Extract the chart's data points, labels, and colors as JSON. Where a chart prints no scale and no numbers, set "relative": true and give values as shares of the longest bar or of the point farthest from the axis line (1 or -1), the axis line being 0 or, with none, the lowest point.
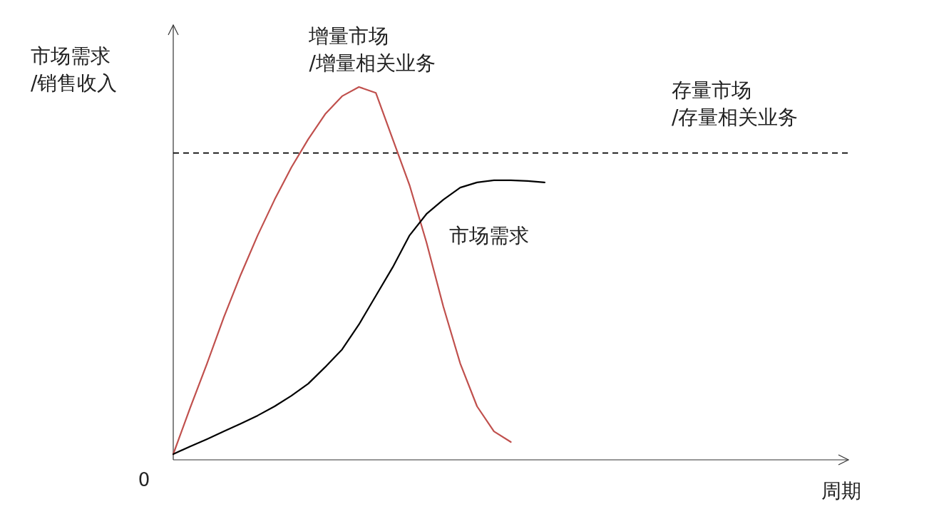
{
  "chart_data": {
    "type": "line",
    "relative": true,
    "xlabel": "周期",
    "ylabel": "市场需求\n/销售收入",
    "annotations": [
      "0"
    ],
    "categories": [
      null,
      null,
      null,
      null,
      null,
      null,
      null,
      null,
      null,
      null,
      null,
      null,
      null,
      null,
      null,
      null,
      null,
      null,
      null,
      null,
      null,
      null,
      null,
      null,
      null,
      null,
      null,
      null,
      null,
      null,
      null,
      null,
      null,
      null,
      null,
      null,
      null,
      null,
      null,
      null
    ],
    "series": [
      {
        "name": "增量市场\n/增量相关业务",
        "color": "#c0504d",
        "values": [
          0,
          0.126,
          0.247,
          0.373,
          0.489,
          0.596,
          0.693,
          0.781,
          0.858,
          0.926,
          0.975,
          1.0,
          0.984,
          0.858,
          0.732,
          0.577,
          0.402,
          0.247,
          0.13,
          0.062,
          0.033,
          null,
          null,
          null,
          null,
          null,
          null,
          null,
          null,
          null,
          null,
          null,
          null,
          null,
          null,
          null,
          null,
          null,
          null,
          null
        ]
      },
      {
        "name": "市场需求",
        "color": "#000000",
        "values": [
          0,
          0.021,
          0.041,
          0.062,
          0.083,
          0.105,
          0.13,
          0.159,
          0.192,
          0.237,
          0.285,
          0.353,
          0.431,
          0.509,
          0.596,
          0.654,
          0.693,
          0.726,
          0.74,
          0.746,
          0.746,
          0.744,
          0.74,
          null,
          null,
          null,
          null,
          null,
          null,
          null,
          null,
          null,
          null,
          null,
          null,
          null,
          null,
          null,
          null,
          null
        ]
      }
    ],
    "ref_lines": [
      {
        "axis": "y",
        "value": 0.82,
        "label": "存量市场\n/存量相关业务",
        "line_style": "dashed",
        "color": "#000000"
      }
    ]
  }
}
